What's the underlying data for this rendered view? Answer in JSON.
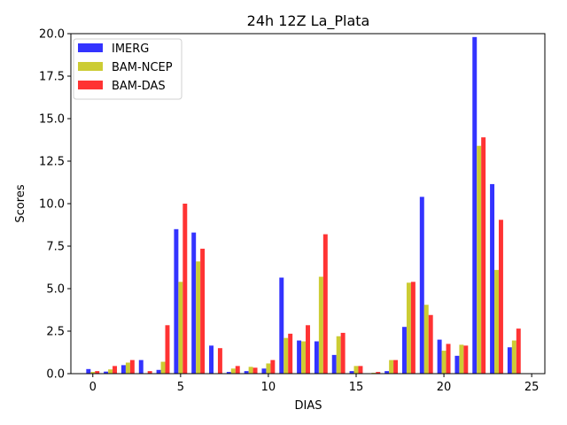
{
  "chart_data": {
    "type": "bar",
    "title": "24h 12Z La_Plata",
    "xlabel": "DIAS",
    "ylabel": "Scores",
    "xlim": [
      -1.25,
      25.75
    ],
    "ylim": [
      0,
      20
    ],
    "xticks": [
      0,
      5,
      10,
      15,
      20,
      25
    ],
    "yticks": [
      0.0,
      2.5,
      5.0,
      7.5,
      10.0,
      12.5,
      15.0,
      17.5,
      20.0
    ],
    "legend_position": "top-left",
    "x": [
      0,
      1,
      2,
      3,
      4,
      5,
      6,
      7,
      8,
      9,
      10,
      11,
      12,
      13,
      14,
      15,
      16,
      17,
      18,
      19,
      20,
      21,
      22,
      23,
      24
    ],
    "series": [
      {
        "name": "IMERG",
        "color": "#3333ff",
        "values": [
          0.27,
          0.12,
          0.5,
          0.8,
          0.22,
          8.5,
          8.3,
          1.65,
          0.1,
          0.15,
          0.3,
          5.65,
          1.95,
          1.9,
          1.1,
          0.15,
          0.02,
          0.15,
          2.75,
          10.4,
          2.0,
          1.05,
          19.8,
          11.15,
          1.55
        ]
      },
      {
        "name": "BAM-NCEP",
        "color": "#cccc33",
        "values": [
          0.1,
          0.25,
          0.65,
          0.0,
          0.7,
          5.4,
          6.6,
          0.0,
          0.3,
          0.4,
          0.6,
          2.1,
          1.9,
          5.7,
          2.2,
          0.45,
          0.05,
          0.8,
          5.35,
          4.05,
          1.35,
          1.7,
          13.4,
          6.1,
          1.95
        ]
      },
      {
        "name": "BAM-DAS",
        "color": "#ff3333",
        "values": [
          0.15,
          0.45,
          0.8,
          0.15,
          2.85,
          10.0,
          7.35,
          1.5,
          0.45,
          0.35,
          0.8,
          2.35,
          2.85,
          8.2,
          2.4,
          0.45,
          0.1,
          0.8,
          5.4,
          3.45,
          1.75,
          1.65,
          13.9,
          9.05,
          2.65
        ]
      }
    ]
  }
}
